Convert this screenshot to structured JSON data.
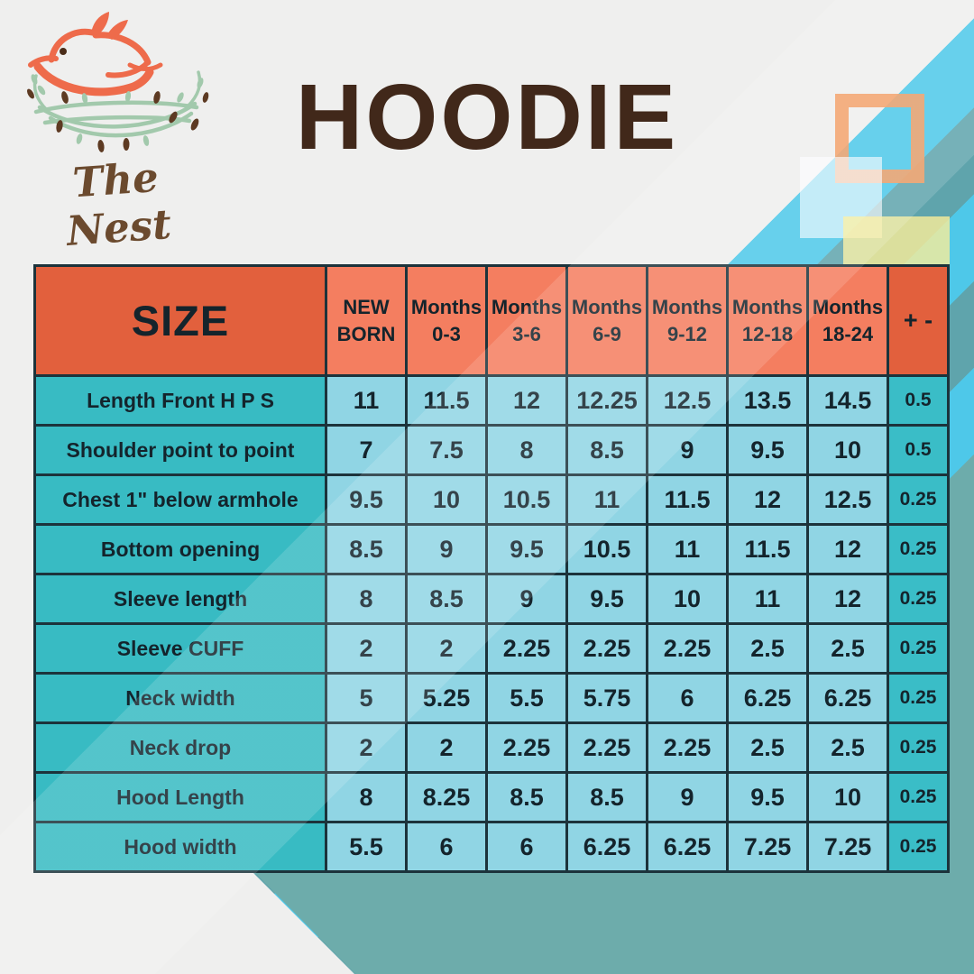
{
  "brand": {
    "name": "The Nest"
  },
  "page": {
    "title": "HOODIE"
  },
  "colors": {
    "pageBg": "#efefee",
    "stripeCyan": "#4ec8e9",
    "stripeTeal": "#5fa4ac",
    "bottomTeal": "#6dacab",
    "headerDark": "#e2603d",
    "headerLight": "#f47e60",
    "cellTeal": "#38bbc3",
    "cellBlue": "#90d5e4",
    "cellTolTeal": "#3abdc7",
    "borderDark": "#1c333b",
    "textDark": "#14242c",
    "titleBrown": "#41281a",
    "logoCoral": "#ee6b4b",
    "logoGreen": "#a2c9ac",
    "logoBrown": "#6b4a2e",
    "squareOrange": "#f29a5f",
    "squareWhite": "#fdfeff",
    "squareYellow": "#faee9a"
  },
  "chart_data": {
    "type": "table",
    "title": "HOODIE",
    "corner_header": "SIZE",
    "tolerance_header": "+ -",
    "columns": [
      {
        "label": "NEW BORN",
        "top": "NEW",
        "bottom": "BORN"
      },
      {
        "label": "Months 0-3",
        "top": "Months",
        "bottom": "0-3"
      },
      {
        "label": "Months 3-6",
        "top": "Months",
        "bottom": "3-6"
      },
      {
        "label": "Months 6-9",
        "top": "Months",
        "bottom": "6-9"
      },
      {
        "label": "Months 9-12",
        "top": "Months",
        "bottom": "9-12"
      },
      {
        "label": "Months 12-18",
        "top": "Months",
        "bottom": "12-18"
      },
      {
        "label": "Months 18-24",
        "top": "Months",
        "bottom": "18-24"
      }
    ],
    "rows": [
      {
        "label": "Length Front H P S",
        "values": [
          "11",
          "11.5",
          "12",
          "12.25",
          "12.5",
          "13.5",
          "14.5"
        ],
        "tolerance": "0.5"
      },
      {
        "label": "Shoulder point to point",
        "values": [
          "7",
          "7.5",
          "8",
          "8.5",
          "9",
          "9.5",
          "10"
        ],
        "tolerance": "0.5"
      },
      {
        "label": "Chest 1\" below armhole",
        "values": [
          "9.5",
          "10",
          "10.5",
          "11",
          "11.5",
          "12",
          "12.5"
        ],
        "tolerance": "0.25"
      },
      {
        "label": "Bottom opening",
        "values": [
          "8.5",
          "9",
          "9.5",
          "10.5",
          "11",
          "11.5",
          "12"
        ],
        "tolerance": "0.25"
      },
      {
        "label": "Sleeve length",
        "values": [
          "8",
          "8.5",
          "9",
          "9.5",
          "10",
          "11",
          "12"
        ],
        "tolerance": "0.25"
      },
      {
        "label": "Sleeve CUFF",
        "values": [
          "2",
          "2",
          "2.25",
          "2.25",
          "2.25",
          "2.5",
          "2.5"
        ],
        "tolerance": "0.25"
      },
      {
        "label": "Neck width",
        "values": [
          "5",
          "5.25",
          "5.5",
          "5.75",
          "6",
          "6.25",
          "6.25"
        ],
        "tolerance": "0.25"
      },
      {
        "label": "Neck drop",
        "values": [
          "2",
          "2",
          "2.25",
          "2.25",
          "2.25",
          "2.5",
          "2.5"
        ],
        "tolerance": "0.25"
      },
      {
        "label": "Hood Length",
        "values": [
          "8",
          "8.25",
          "8.5",
          "8.5",
          "9",
          "9.5",
          "10"
        ],
        "tolerance": "0.25"
      },
      {
        "label": "Hood width",
        "values": [
          "5.5",
          "6",
          "6",
          "6.25",
          "6.25",
          "7.25",
          "7.25"
        ],
        "tolerance": "0.25"
      }
    ]
  }
}
